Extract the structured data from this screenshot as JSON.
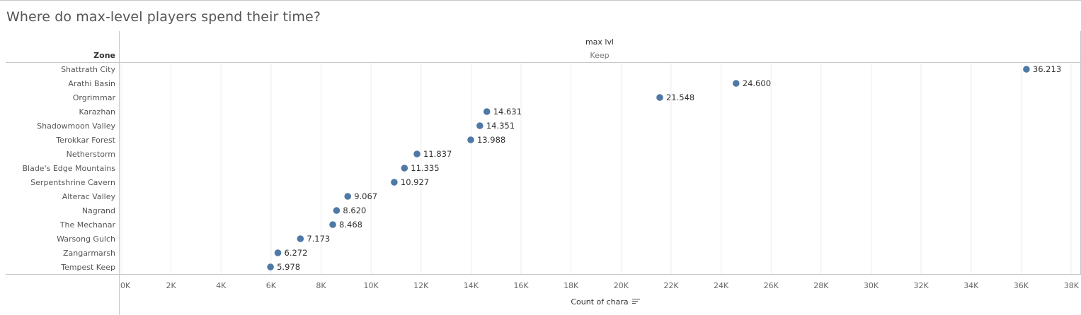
{
  "title": "Where do max-level players spend their time?",
  "chart_data": {
    "type": "scatter",
    "title": "Where do max-level players spend their time?",
    "row_header": "Zone",
    "column_header": "max lvl",
    "column_value": "Keep",
    "xlabel": "Count of chara",
    "xlim": [
      0,
      38000
    ],
    "x_ticks": [
      "0K",
      "2K",
      "4K",
      "6K",
      "8K",
      "10K",
      "12K",
      "14K",
      "16K",
      "18K",
      "20K",
      "22K",
      "24K",
      "26K",
      "28K",
      "30K",
      "32K",
      "34K",
      "36K",
      "38K"
    ],
    "grid": true,
    "mark_color": "#4e79a7",
    "categories": [
      "Shattrath City",
      "Arathi Basin",
      "Orgrimmar",
      "Karazhan",
      "Shadowmoon Valley",
      "Terokkar Forest",
      "Netherstorm",
      "Blade's Edge Mountains",
      "Serpentshrine Cavern",
      "Alterac Valley",
      "Nagrand",
      "The Mechanar",
      "Warsong Gulch",
      "Zangarmarsh",
      "Tempest Keep"
    ],
    "values": [
      36213,
      24600,
      21548,
      14631,
      14351,
      13988,
      11837,
      11335,
      10927,
      9067,
      8620,
      8468,
      7173,
      6272,
      5978
    ],
    "value_labels": [
      "36.213",
      "24.600",
      "21.548",
      "14.631",
      "14.351",
      "13.988",
      "11.837",
      "11.335",
      "10.927",
      "9.067",
      "8.620",
      "8.468",
      "7.173",
      "6.272",
      "5.978"
    ]
  }
}
